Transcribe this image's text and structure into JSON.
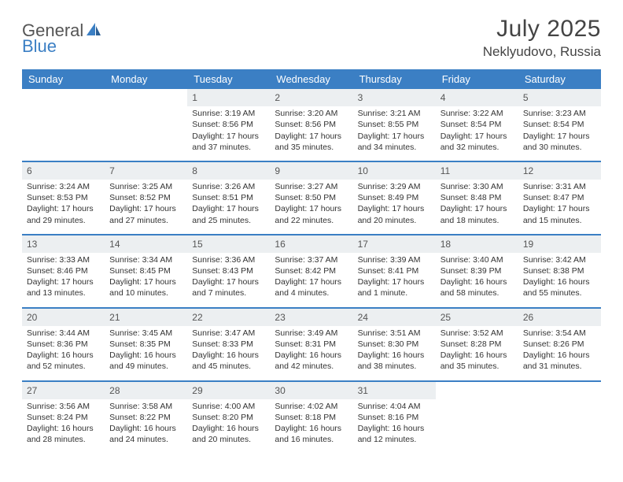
{
  "brand": {
    "text_general": "General",
    "text_blue": "Blue",
    "icon_color": "#3b7fc4"
  },
  "header": {
    "month_title": "July 2025",
    "location": "Neklyudovo, Russia"
  },
  "colors": {
    "header_bg": "#3b7fc4",
    "header_text": "#ffffff",
    "row_border": "#3b7fc4",
    "daynum_shade": "#eceff1",
    "body_text": "#333333"
  },
  "dayHeaders": [
    "Sunday",
    "Monday",
    "Tuesday",
    "Wednesday",
    "Thursday",
    "Friday",
    "Saturday"
  ],
  "weeks": [
    [
      null,
      null,
      {
        "n": "1",
        "sunrise": "Sunrise: 3:19 AM",
        "sunset": "Sunset: 8:56 PM",
        "daylight": "Daylight: 17 hours and 37 minutes."
      },
      {
        "n": "2",
        "sunrise": "Sunrise: 3:20 AM",
        "sunset": "Sunset: 8:56 PM",
        "daylight": "Daylight: 17 hours and 35 minutes."
      },
      {
        "n": "3",
        "sunrise": "Sunrise: 3:21 AM",
        "sunset": "Sunset: 8:55 PM",
        "daylight": "Daylight: 17 hours and 34 minutes."
      },
      {
        "n": "4",
        "sunrise": "Sunrise: 3:22 AM",
        "sunset": "Sunset: 8:54 PM",
        "daylight": "Daylight: 17 hours and 32 minutes."
      },
      {
        "n": "5",
        "sunrise": "Sunrise: 3:23 AM",
        "sunset": "Sunset: 8:54 PM",
        "daylight": "Daylight: 17 hours and 30 minutes."
      }
    ],
    [
      {
        "n": "6",
        "sunrise": "Sunrise: 3:24 AM",
        "sunset": "Sunset: 8:53 PM",
        "daylight": "Daylight: 17 hours and 29 minutes."
      },
      {
        "n": "7",
        "sunrise": "Sunrise: 3:25 AM",
        "sunset": "Sunset: 8:52 PM",
        "daylight": "Daylight: 17 hours and 27 minutes."
      },
      {
        "n": "8",
        "sunrise": "Sunrise: 3:26 AM",
        "sunset": "Sunset: 8:51 PM",
        "daylight": "Daylight: 17 hours and 25 minutes."
      },
      {
        "n": "9",
        "sunrise": "Sunrise: 3:27 AM",
        "sunset": "Sunset: 8:50 PM",
        "daylight": "Daylight: 17 hours and 22 minutes."
      },
      {
        "n": "10",
        "sunrise": "Sunrise: 3:29 AM",
        "sunset": "Sunset: 8:49 PM",
        "daylight": "Daylight: 17 hours and 20 minutes."
      },
      {
        "n": "11",
        "sunrise": "Sunrise: 3:30 AM",
        "sunset": "Sunset: 8:48 PM",
        "daylight": "Daylight: 17 hours and 18 minutes."
      },
      {
        "n": "12",
        "sunrise": "Sunrise: 3:31 AM",
        "sunset": "Sunset: 8:47 PM",
        "daylight": "Daylight: 17 hours and 15 minutes."
      }
    ],
    [
      {
        "n": "13",
        "sunrise": "Sunrise: 3:33 AM",
        "sunset": "Sunset: 8:46 PM",
        "daylight": "Daylight: 17 hours and 13 minutes."
      },
      {
        "n": "14",
        "sunrise": "Sunrise: 3:34 AM",
        "sunset": "Sunset: 8:45 PM",
        "daylight": "Daylight: 17 hours and 10 minutes."
      },
      {
        "n": "15",
        "sunrise": "Sunrise: 3:36 AM",
        "sunset": "Sunset: 8:43 PM",
        "daylight": "Daylight: 17 hours and 7 minutes."
      },
      {
        "n": "16",
        "sunrise": "Sunrise: 3:37 AM",
        "sunset": "Sunset: 8:42 PM",
        "daylight": "Daylight: 17 hours and 4 minutes."
      },
      {
        "n": "17",
        "sunrise": "Sunrise: 3:39 AM",
        "sunset": "Sunset: 8:41 PM",
        "daylight": "Daylight: 17 hours and 1 minute."
      },
      {
        "n": "18",
        "sunrise": "Sunrise: 3:40 AM",
        "sunset": "Sunset: 8:39 PM",
        "daylight": "Daylight: 16 hours and 58 minutes."
      },
      {
        "n": "19",
        "sunrise": "Sunrise: 3:42 AM",
        "sunset": "Sunset: 8:38 PM",
        "daylight": "Daylight: 16 hours and 55 minutes."
      }
    ],
    [
      {
        "n": "20",
        "sunrise": "Sunrise: 3:44 AM",
        "sunset": "Sunset: 8:36 PM",
        "daylight": "Daylight: 16 hours and 52 minutes."
      },
      {
        "n": "21",
        "sunrise": "Sunrise: 3:45 AM",
        "sunset": "Sunset: 8:35 PM",
        "daylight": "Daylight: 16 hours and 49 minutes."
      },
      {
        "n": "22",
        "sunrise": "Sunrise: 3:47 AM",
        "sunset": "Sunset: 8:33 PM",
        "daylight": "Daylight: 16 hours and 45 minutes."
      },
      {
        "n": "23",
        "sunrise": "Sunrise: 3:49 AM",
        "sunset": "Sunset: 8:31 PM",
        "daylight": "Daylight: 16 hours and 42 minutes."
      },
      {
        "n": "24",
        "sunrise": "Sunrise: 3:51 AM",
        "sunset": "Sunset: 8:30 PM",
        "daylight": "Daylight: 16 hours and 38 minutes."
      },
      {
        "n": "25",
        "sunrise": "Sunrise: 3:52 AM",
        "sunset": "Sunset: 8:28 PM",
        "daylight": "Daylight: 16 hours and 35 minutes."
      },
      {
        "n": "26",
        "sunrise": "Sunrise: 3:54 AM",
        "sunset": "Sunset: 8:26 PM",
        "daylight": "Daylight: 16 hours and 31 minutes."
      }
    ],
    [
      {
        "n": "27",
        "sunrise": "Sunrise: 3:56 AM",
        "sunset": "Sunset: 8:24 PM",
        "daylight": "Daylight: 16 hours and 28 minutes."
      },
      {
        "n": "28",
        "sunrise": "Sunrise: 3:58 AM",
        "sunset": "Sunset: 8:22 PM",
        "daylight": "Daylight: 16 hours and 24 minutes."
      },
      {
        "n": "29",
        "sunrise": "Sunrise: 4:00 AM",
        "sunset": "Sunset: 8:20 PM",
        "daylight": "Daylight: 16 hours and 20 minutes."
      },
      {
        "n": "30",
        "sunrise": "Sunrise: 4:02 AM",
        "sunset": "Sunset: 8:18 PM",
        "daylight": "Daylight: 16 hours and 16 minutes."
      },
      {
        "n": "31",
        "sunrise": "Sunrise: 4:04 AM",
        "sunset": "Sunset: 8:16 PM",
        "daylight": "Daylight: 16 hours and 12 minutes."
      },
      null,
      null
    ]
  ]
}
